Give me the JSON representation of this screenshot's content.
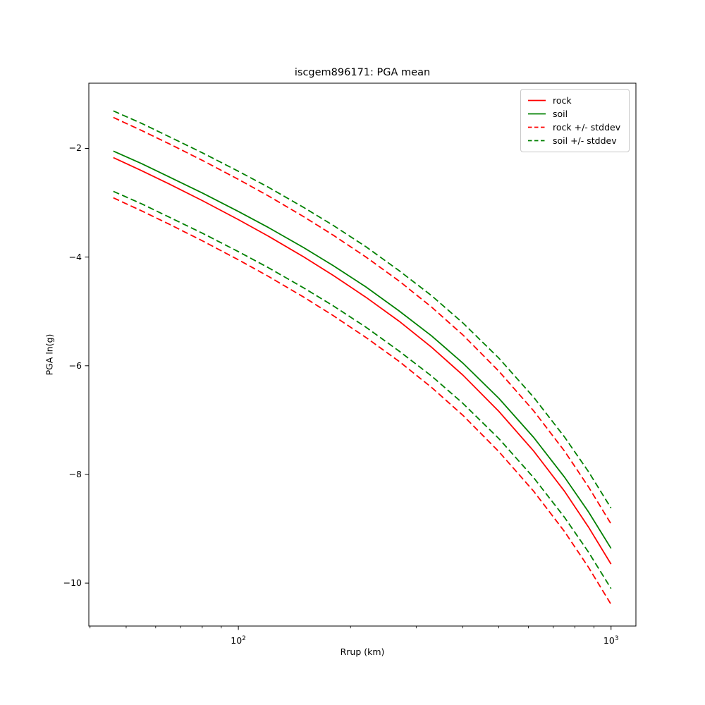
{
  "chart_data": {
    "type": "line",
    "title": "iscgem896171: PGA mean",
    "xlabel": "Rrup (km)",
    "ylabel": "PGA ln(g)",
    "x_scale": "log",
    "grid": false,
    "legend_position": "upper right",
    "xlim": [
      39.7,
      1166
    ],
    "ylim": [
      -10.79,
      -0.8
    ],
    "x_major_ticks": [
      {
        "value": 100,
        "base": "10",
        "exp": "2"
      },
      {
        "value": 1000,
        "base": "10",
        "exp": "3"
      }
    ],
    "x_minor_ticks": [
      40,
      50,
      60,
      70,
      80,
      90,
      200,
      300,
      400,
      500,
      600,
      700,
      800,
      900
    ],
    "y_ticks": [
      {
        "value": -2,
        "label": "−2"
      },
      {
        "value": -4,
        "label": "−4"
      },
      {
        "value": -6,
        "label": "−6"
      },
      {
        "value": -8,
        "label": "−8"
      },
      {
        "value": -10,
        "label": "−10"
      }
    ],
    "x": [
      46.2,
      55,
      65,
      80,
      100,
      120,
      150,
      180,
      220,
      270,
      330,
      400,
      500,
      620,
      750,
      870,
      1000
    ],
    "series": [
      {
        "name": "rock mean",
        "color": "#ff0000",
        "style": "solid",
        "values": [
          -2.17,
          -2.41,
          -2.65,
          -2.96,
          -3.31,
          -3.61,
          -4.0,
          -4.34,
          -4.74,
          -5.18,
          -5.66,
          -6.17,
          -6.84,
          -7.57,
          -8.31,
          -8.97,
          -9.65
        ]
      },
      {
        "name": "soil mean",
        "color": "#008000",
        "style": "solid",
        "values": [
          -2.05,
          -2.28,
          -2.52,
          -2.82,
          -3.16,
          -3.45,
          -3.83,
          -4.16,
          -4.55,
          -4.99,
          -5.45,
          -5.95,
          -6.6,
          -7.32,
          -8.05,
          -8.69,
          -9.36
        ]
      },
      {
        "name": "rock +stddev",
        "color": "#ff0000",
        "style": "dashed",
        "values": [
          -1.43,
          -1.67,
          -1.91,
          -2.22,
          -2.57,
          -2.87,
          -3.26,
          -3.6,
          -4.0,
          -4.44,
          -4.92,
          -5.43,
          -6.1,
          -6.83,
          -7.57,
          -8.23,
          -8.91
        ]
      },
      {
        "name": "rock -stddev",
        "color": "#ff0000",
        "style": "dashed",
        "values": [
          -2.91,
          -3.15,
          -3.39,
          -3.7,
          -4.05,
          -4.35,
          -4.74,
          -5.08,
          -5.48,
          -5.92,
          -6.4,
          -6.91,
          -7.58,
          -8.31,
          -9.05,
          -9.71,
          -10.39
        ]
      },
      {
        "name": "soil +stddev",
        "color": "#008000",
        "style": "dashed",
        "values": [
          -1.31,
          -1.54,
          -1.78,
          -2.08,
          -2.42,
          -2.71,
          -3.09,
          -3.42,
          -3.81,
          -4.25,
          -4.71,
          -5.21,
          -5.86,
          -6.58,
          -7.31,
          -7.95,
          -8.62
        ]
      },
      {
        "name": "soil -stddev",
        "color": "#008000",
        "style": "dashed",
        "values": [
          -2.79,
          -3.02,
          -3.26,
          -3.56,
          -3.9,
          -4.19,
          -4.57,
          -4.9,
          -5.29,
          -5.73,
          -6.19,
          -6.69,
          -7.34,
          -8.06,
          -8.79,
          -9.43,
          -10.1
        ]
      }
    ],
    "legend": [
      {
        "label": "rock",
        "color": "#ff0000",
        "style": "solid"
      },
      {
        "label": "soil",
        "color": "#008000",
        "style": "solid"
      },
      {
        "label": "rock +/- stddev",
        "color": "#ff0000",
        "style": "dashed"
      },
      {
        "label": "soil +/- stddev",
        "color": "#008000",
        "style": "dashed"
      }
    ],
    "colors": {
      "rock": "#ff0000",
      "soil": "#008000",
      "axis": "#000000",
      "legend_border": "#c8c8c8",
      "background": "#ffffff"
    }
  }
}
